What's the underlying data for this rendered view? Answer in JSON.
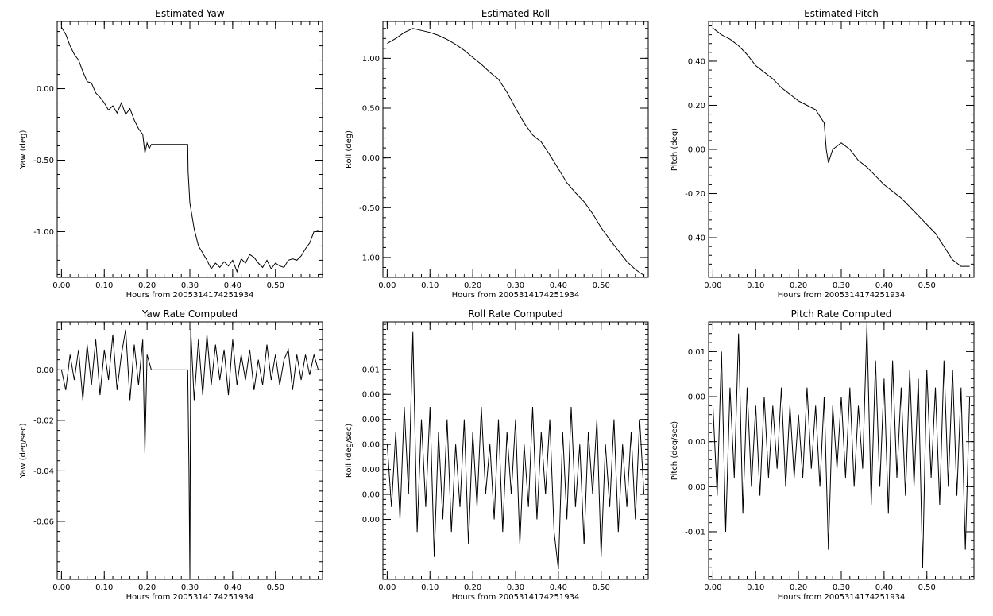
{
  "chart_data": [
    {
      "type": "line",
      "title": "Estimated Yaw",
      "xlabel": "Hours from 2005314174251934",
      "ylabel": "Yaw (deg)",
      "xlim": [
        -0.01,
        0.61
      ],
      "ylim": [
        -1.32,
        0.47
      ],
      "xticks": [
        0.0,
        0.1,
        0.2,
        0.3,
        0.4,
        0.5
      ],
      "xtick_labels": [
        "0.00",
        "0.10",
        "0.20",
        "0.30",
        "0.40",
        "0.50"
      ],
      "yticks": [
        -1.0,
        -0.5,
        0.0
      ],
      "ytick_labels": [
        "-1.00",
        "-0.50",
        "0.00"
      ],
      "x": [
        0.0,
        0.01,
        0.02,
        0.03,
        0.04,
        0.05,
        0.06,
        0.07,
        0.08,
        0.09,
        0.1,
        0.11,
        0.12,
        0.13,
        0.14,
        0.15,
        0.16,
        0.17,
        0.18,
        0.19,
        0.195,
        0.2,
        0.205,
        0.21,
        0.25,
        0.295,
        0.296,
        0.3,
        0.31,
        0.32,
        0.33,
        0.34,
        0.35,
        0.36,
        0.37,
        0.38,
        0.39,
        0.4,
        0.41,
        0.42,
        0.43,
        0.44,
        0.45,
        0.46,
        0.47,
        0.48,
        0.49,
        0.5,
        0.51,
        0.52,
        0.53,
        0.54,
        0.55,
        0.56,
        0.57,
        0.58,
        0.59,
        0.6
      ],
      "y": [
        0.43,
        0.38,
        0.3,
        0.24,
        0.2,
        0.12,
        0.05,
        0.04,
        -0.03,
        -0.06,
        -0.1,
        -0.15,
        -0.12,
        -0.17,
        -0.1,
        -0.18,
        -0.14,
        -0.22,
        -0.28,
        -0.32,
        -0.45,
        -0.38,
        -0.42,
        -0.39,
        -0.39,
        -0.39,
        -0.58,
        -0.8,
        -0.98,
        -1.1,
        -1.15,
        -1.2,
        -1.26,
        -1.22,
        -1.25,
        -1.21,
        -1.24,
        -1.2,
        -1.28,
        -1.19,
        -1.22,
        -1.16,
        -1.18,
        -1.22,
        -1.25,
        -1.2,
        -1.26,
        -1.22,
        -1.24,
        -1.25,
        -1.2,
        -1.19,
        -1.2,
        -1.17,
        -1.12,
        -1.08,
        -1.0,
        -0.99
      ]
    },
    {
      "type": "line",
      "title": "Estimated Roll",
      "xlabel": "Hours from 2005314174251934",
      "ylabel": "Roll (deg)",
      "xlim": [
        -0.01,
        0.61
      ],
      "ylim": [
        -1.2,
        1.37
      ],
      "xticks": [
        0.0,
        0.1,
        0.2,
        0.3,
        0.4,
        0.5
      ],
      "xtick_labels": [
        "0.00",
        "0.10",
        "0.20",
        "0.30",
        "0.40",
        "0.50"
      ],
      "yticks": [
        -1.0,
        -0.5,
        0.0,
        0.5,
        1.0
      ],
      "ytick_labels": [
        "-1.00",
        "-0.50",
        "0.00",
        "0.50",
        "1.00"
      ],
      "x": [
        0.0,
        0.02,
        0.04,
        0.06,
        0.08,
        0.1,
        0.12,
        0.14,
        0.16,
        0.18,
        0.2,
        0.22,
        0.24,
        0.26,
        0.28,
        0.3,
        0.32,
        0.34,
        0.36,
        0.38,
        0.4,
        0.42,
        0.44,
        0.46,
        0.48,
        0.5,
        0.52,
        0.54,
        0.56,
        0.58,
        0.6
      ],
      "y": [
        1.15,
        1.2,
        1.26,
        1.3,
        1.28,
        1.26,
        1.23,
        1.19,
        1.14,
        1.08,
        1.01,
        0.94,
        0.86,
        0.79,
        0.66,
        0.5,
        0.35,
        0.23,
        0.16,
        0.03,
        -0.11,
        -0.25,
        -0.35,
        -0.44,
        -0.56,
        -0.7,
        -0.82,
        -0.93,
        -1.04,
        -1.12,
        -1.18
      ]
    },
    {
      "type": "line",
      "title": "Estimated Pitch",
      "xlabel": "Hours from 2005314174251934",
      "ylabel": "Pitch (deg)",
      "xlim": [
        -0.01,
        0.61
      ],
      "ylim": [
        -0.58,
        0.58
      ],
      "xticks": [
        0.0,
        0.1,
        0.2,
        0.3,
        0.4,
        0.5
      ],
      "xtick_labels": [
        "0.00",
        "0.10",
        "0.20",
        "0.30",
        "0.40",
        "0.50"
      ],
      "yticks": [
        -0.4,
        -0.2,
        0.0,
        0.2,
        0.4
      ],
      "ytick_labels": [
        "-0.40",
        "-0.20",
        "0.00",
        "0.20",
        "0.40"
      ],
      "x": [
        0.0,
        0.02,
        0.04,
        0.06,
        0.08,
        0.1,
        0.12,
        0.14,
        0.16,
        0.18,
        0.2,
        0.22,
        0.24,
        0.25,
        0.26,
        0.265,
        0.27,
        0.28,
        0.3,
        0.32,
        0.34,
        0.36,
        0.38,
        0.4,
        0.42,
        0.44,
        0.46,
        0.48,
        0.5,
        0.52,
        0.54,
        0.56,
        0.58,
        0.6
      ],
      "y": [
        0.55,
        0.52,
        0.5,
        0.47,
        0.43,
        0.38,
        0.35,
        0.32,
        0.28,
        0.25,
        0.22,
        0.2,
        0.18,
        0.15,
        0.12,
        0.0,
        -0.06,
        0.0,
        0.03,
        0.0,
        -0.05,
        -0.08,
        -0.12,
        -0.16,
        -0.19,
        -0.22,
        -0.26,
        -0.3,
        -0.34,
        -0.38,
        -0.44,
        -0.5,
        -0.53,
        -0.53
      ]
    },
    {
      "type": "line",
      "title": "Yaw Rate Computed",
      "xlabel": "Hours from 2005314174251934",
      "ylabel": "Yaw (deg/sec)",
      "xlim": [
        -0.01,
        0.61
      ],
      "ylim": [
        -0.083,
        0.019
      ],
      "xticks": [
        0.0,
        0.1,
        0.2,
        0.3,
        0.4,
        0.5
      ],
      "xtick_labels": [
        "0.00",
        "0.10",
        "0.20",
        "0.30",
        "0.40",
        "0.50"
      ],
      "yticks": [
        -0.06,
        -0.04,
        -0.02,
        0.0
      ],
      "ytick_labels": [
        "-0.06",
        "-0.04",
        "-0.02",
        "0.00"
      ],
      "x": [
        0.0,
        0.01,
        0.02,
        0.03,
        0.04,
        0.05,
        0.06,
        0.07,
        0.08,
        0.09,
        0.1,
        0.11,
        0.12,
        0.13,
        0.14,
        0.15,
        0.16,
        0.17,
        0.18,
        0.19,
        0.195,
        0.2,
        0.21,
        0.25,
        0.295,
        0.298,
        0.3,
        0.302,
        0.31,
        0.32,
        0.33,
        0.34,
        0.35,
        0.36,
        0.37,
        0.38,
        0.39,
        0.4,
        0.41,
        0.42,
        0.43,
        0.44,
        0.45,
        0.46,
        0.47,
        0.48,
        0.49,
        0.5,
        0.51,
        0.52,
        0.53,
        0.54,
        0.55,
        0.56,
        0.57,
        0.58,
        0.59,
        0.6
      ],
      "y": [
        0.0,
        -0.008,
        0.006,
        -0.004,
        0.008,
        -0.012,
        0.01,
        -0.006,
        0.012,
        -0.01,
        0.008,
        -0.004,
        0.014,
        -0.008,
        0.006,
        0.016,
        -0.012,
        0.01,
        -0.006,
        0.012,
        -0.033,
        0.006,
        0.0,
        0.0,
        0.0,
        -0.04,
        -0.082,
        0.016,
        -0.012,
        0.012,
        -0.01,
        0.014,
        -0.006,
        0.01,
        -0.004,
        0.008,
        -0.01,
        0.012,
        -0.006,
        0.006,
        -0.004,
        0.008,
        -0.008,
        0.004,
        -0.006,
        0.01,
        -0.004,
        0.006,
        -0.006,
        0.004,
        0.008,
        -0.008,
        0.006,
        -0.004,
        0.006,
        -0.002,
        0.006,
        0.0
      ]
    },
    {
      "type": "line",
      "title": "Roll Rate Computed",
      "xlabel": "Hours from 2005314174251934",
      "ylabel": "Roll (deg/sec)",
      "xlim": [
        -0.01,
        0.61
      ],
      "ylim": [
        -0.0088,
        0.0118
      ],
      "xticks": [
        0.0,
        0.1,
        0.2,
        0.3,
        0.4,
        0.5
      ],
      "xtick_labels": [
        "0.00",
        "0.10",
        "0.20",
        "0.30",
        "0.40",
        "0.50"
      ],
      "yticks": [
        -0.004,
        -0.002,
        0.0,
        0.002,
        0.004,
        0.006,
        0.008
      ],
      "ytick_labels": [
        "0.00",
        "0.00",
        "0.00",
        "0.00",
        "0.00",
        "0.00",
        "0.01"
      ],
      "x": [
        0.0,
        0.01,
        0.02,
        0.03,
        0.04,
        0.05,
        0.06,
        0.07,
        0.08,
        0.09,
        0.1,
        0.11,
        0.12,
        0.13,
        0.14,
        0.15,
        0.16,
        0.17,
        0.18,
        0.19,
        0.2,
        0.21,
        0.22,
        0.23,
        0.24,
        0.25,
        0.26,
        0.27,
        0.28,
        0.29,
        0.3,
        0.31,
        0.32,
        0.33,
        0.34,
        0.35,
        0.36,
        0.37,
        0.38,
        0.39,
        0.4,
        0.41,
        0.42,
        0.43,
        0.44,
        0.45,
        0.46,
        0.47,
        0.48,
        0.49,
        0.5,
        0.51,
        0.52,
        0.53,
        0.54,
        0.55,
        0.56,
        0.57,
        0.58,
        0.59,
        0.6
      ],
      "y": [
        0.002,
        -0.003,
        0.003,
        -0.004,
        0.005,
        -0.002,
        0.011,
        -0.005,
        0.004,
        -0.003,
        0.005,
        -0.007,
        0.003,
        -0.004,
        0.004,
        -0.005,
        0.002,
        -0.003,
        0.004,
        -0.006,
        0.003,
        -0.003,
        0.005,
        -0.002,
        0.002,
        -0.004,
        0.004,
        -0.005,
        0.003,
        -0.002,
        0.004,
        -0.006,
        0.002,
        -0.003,
        0.005,
        -0.004,
        0.003,
        -0.002,
        0.004,
        -0.005,
        -0.008,
        0.003,
        -0.004,
        0.005,
        -0.003,
        0.002,
        -0.006,
        0.003,
        -0.002,
        0.004,
        -0.007,
        0.002,
        -0.003,
        0.004,
        -0.005,
        0.002,
        -0.003,
        0.003,
        -0.004,
        0.004,
        -0.002
      ]
    },
    {
      "type": "line",
      "title": "Pitch Rate Computed",
      "xlabel": "Hours from 2005314174251934",
      "ylabel": "Pitch (deg/sec)",
      "xlim": [
        -0.01,
        0.61
      ],
      "ylim": [
        -0.0153,
        0.0133
      ],
      "xticks": [
        0.0,
        0.1,
        0.2,
        0.3,
        0.4,
        0.5
      ],
      "xtick_labels": [
        "0.00",
        "0.10",
        "0.20",
        "0.30",
        "0.40",
        "0.50"
      ],
      "yticks": [
        -0.01,
        -0.005,
        0.0,
        0.005,
        0.01
      ],
      "ytick_labels": [
        "-0.01",
        "0.00",
        "0.00",
        "0.00",
        "0.01"
      ],
      "x": [
        0.0,
        0.01,
        0.02,
        0.03,
        0.04,
        0.05,
        0.06,
        0.07,
        0.08,
        0.09,
        0.1,
        0.11,
        0.12,
        0.13,
        0.14,
        0.15,
        0.16,
        0.17,
        0.18,
        0.19,
        0.2,
        0.21,
        0.22,
        0.23,
        0.24,
        0.25,
        0.26,
        0.27,
        0.28,
        0.29,
        0.3,
        0.31,
        0.32,
        0.33,
        0.34,
        0.35,
        0.36,
        0.37,
        0.38,
        0.39,
        0.4,
        0.41,
        0.42,
        0.43,
        0.44,
        0.45,
        0.46,
        0.47,
        0.48,
        0.49,
        0.5,
        0.51,
        0.52,
        0.53,
        0.54,
        0.55,
        0.56,
        0.57,
        0.58,
        0.59,
        0.6
      ],
      "y": [
        0.004,
        -0.006,
        0.01,
        -0.01,
        0.006,
        -0.004,
        0.012,
        -0.008,
        0.006,
        -0.005,
        0.004,
        -0.006,
        0.005,
        -0.004,
        0.004,
        -0.003,
        0.006,
        -0.005,
        0.004,
        -0.004,
        0.003,
        -0.004,
        0.006,
        -0.003,
        0.004,
        -0.005,
        0.005,
        -0.012,
        0.004,
        -0.003,
        0.005,
        -0.004,
        0.006,
        -0.005,
        0.004,
        -0.003,
        0.013,
        -0.007,
        0.009,
        -0.005,
        0.007,
        -0.008,
        0.009,
        -0.004,
        0.006,
        -0.006,
        0.008,
        -0.005,
        0.007,
        -0.014,
        0.008,
        -0.004,
        0.006,
        -0.007,
        0.009,
        -0.005,
        0.008,
        -0.006,
        0.006,
        -0.012,
        0.005
      ]
    }
  ]
}
